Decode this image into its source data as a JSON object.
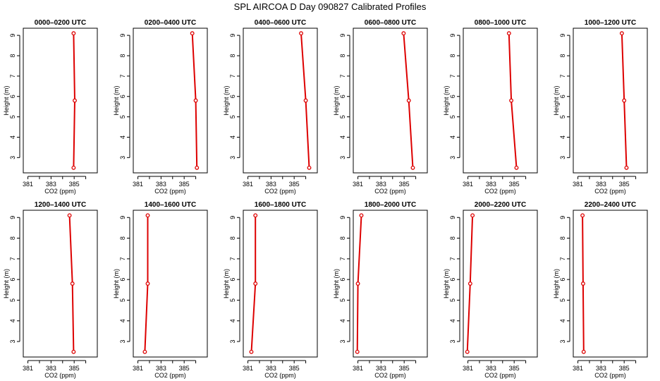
{
  "title": "SPL AIRCOA D  Day 090827  Calibrated Profiles",
  "chart_data": {
    "type": "line",
    "series_color": "#dd0000",
    "xlabel": "CO2 (ppm)",
    "ylabel": "Height (m)",
    "xlim": [
      380.6,
      387.0
    ],
    "ylim": [
      2.25,
      9.35
    ],
    "xticks": [
      381,
      382,
      383,
      384,
      385,
      386
    ],
    "xtick_labels": [
      "381",
      "",
      "383",
      "",
      "385",
      ""
    ],
    "yticks": [
      3,
      4,
      5,
      6,
      7,
      8,
      9
    ],
    "heights": [
      2.5,
      5.8,
      9.1
    ],
    "panels": [
      {
        "title": "0000–0200 UTC",
        "co2": [
          384.95,
          385.05,
          384.95
        ]
      },
      {
        "title": "0200–0400 UTC",
        "co2": [
          386.1,
          386.0,
          385.7
        ]
      },
      {
        "title": "0400–0600 UTC",
        "co2": [
          386.3,
          386.0,
          385.6
        ]
      },
      {
        "title": "0600–0800 UTC",
        "co2": [
          385.75,
          385.4,
          384.95
        ]
      },
      {
        "title": "0800–1000 UTC",
        "co2": [
          385.2,
          384.75,
          384.55
        ]
      },
      {
        "title": "1000–1200 UTC",
        "co2": [
          385.2,
          385.0,
          384.8
        ]
      },
      {
        "title": "1200–1400 UTC",
        "co2": [
          384.95,
          384.85,
          384.6
        ]
      },
      {
        "title": "1400–1600 UTC",
        "co2": [
          381.6,
          381.85,
          381.85
        ]
      },
      {
        "title": "1600–1800 UTC",
        "co2": [
          381.3,
          381.65,
          381.65
        ]
      },
      {
        "title": "1800–2000 UTC",
        "co2": [
          380.95,
          381.0,
          381.3
        ]
      },
      {
        "title": "2000–2200 UTC",
        "co2": [
          380.95,
          381.2,
          381.4
        ]
      },
      {
        "title": "2200–2400 UTC",
        "co2": [
          381.5,
          381.45,
          381.4
        ]
      }
    ]
  }
}
